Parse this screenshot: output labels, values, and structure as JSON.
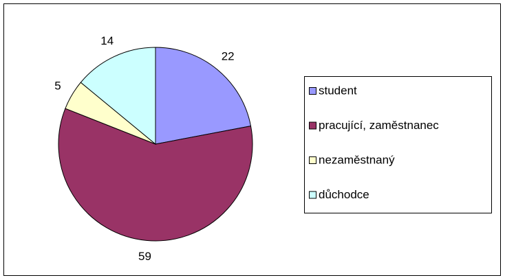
{
  "chart_data": {
    "type": "pie",
    "categories": [
      "student",
      "pracující, zaměstnanec",
      "nezaměstnaný",
      "důchodce"
    ],
    "values": [
      22,
      59,
      5,
      14
    ],
    "colors": [
      "#9999ff",
      "#993366",
      "#ffffcc",
      "#ccffff"
    ],
    "legend": "right"
  }
}
